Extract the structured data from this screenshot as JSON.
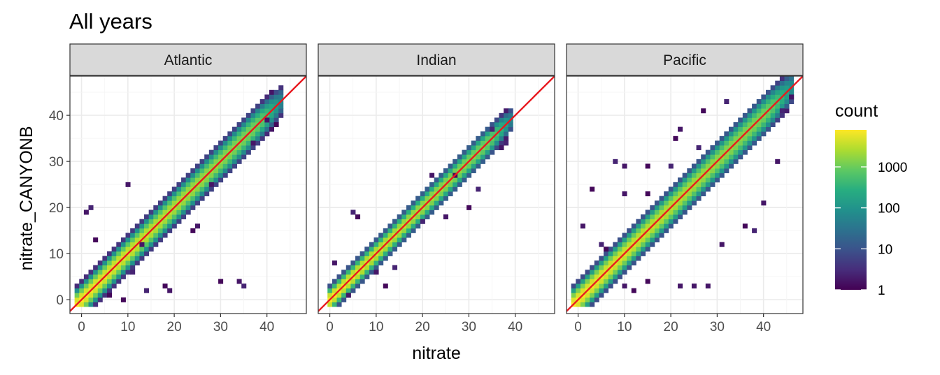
{
  "title": "All years",
  "chart_data": {
    "type": "heatmap",
    "title": "All years",
    "xlabel": "nitrate",
    "ylabel": "nitrate_CANYONB",
    "xlim": [
      -2.5,
      48.5
    ],
    "ylim": [
      -3,
      48.5
    ],
    "x_ticks": [
      0,
      10,
      20,
      30,
      40
    ],
    "y_ticks": [
      0,
      10,
      20,
      30,
      40
    ],
    "grid": true,
    "reference_line": {
      "slope": 1,
      "intercept": 0,
      "color": "#e8191f"
    },
    "colorscale": "viridis",
    "fill_scale": "log10",
    "legend": {
      "title": "count",
      "placement": "right",
      "breaks": [
        "1000",
        "100",
        "10",
        "1"
      ],
      "break_values": [
        1000,
        100,
        10,
        1
      ],
      "max": 8000
    },
    "panels": [
      {
        "name": "Atlantic",
        "x_range": [
          -0.5,
          43
        ],
        "offset_sd": 1.6,
        "outliers": [
          [
            2,
            20
          ],
          [
            1,
            19
          ],
          [
            3,
            13
          ],
          [
            10,
            25
          ],
          [
            13,
            12
          ],
          [
            18,
            3
          ],
          [
            19,
            2
          ],
          [
            30,
            4
          ],
          [
            34,
            4
          ],
          [
            35,
            3
          ],
          [
            37,
            34
          ],
          [
            40,
            39
          ],
          [
            42,
            38
          ],
          [
            28,
            25
          ],
          [
            25,
            16
          ],
          [
            24,
            15
          ],
          [
            6,
            1
          ],
          [
            9,
            0
          ],
          [
            11,
            6
          ],
          [
            14,
            2
          ]
        ]
      },
      {
        "name": "Indian",
        "x_range": [
          0,
          39
        ],
        "offset_sd": 1.3,
        "outliers": [
          [
            1,
            8
          ],
          [
            5,
            19
          ],
          [
            6,
            18
          ],
          [
            4,
            1
          ],
          [
            12,
            3
          ],
          [
            14,
            7
          ],
          [
            22,
            27
          ],
          [
            30,
            20
          ],
          [
            32,
            24
          ],
          [
            35,
            37
          ],
          [
            37,
            33
          ],
          [
            38,
            34
          ],
          [
            20,
            17
          ],
          [
            25,
            18
          ],
          [
            27,
            27
          ],
          [
            10,
            6
          ]
        ]
      },
      {
        "name": "Pacific",
        "x_range": [
          -0.5,
          46.5
        ],
        "offset_sd": 1.7,
        "outliers": [
          [
            3,
            24
          ],
          [
            8,
            30
          ],
          [
            10,
            29
          ],
          [
            10,
            23
          ],
          [
            15,
            29
          ],
          [
            15,
            23
          ],
          [
            20,
            29
          ],
          [
            21,
            35
          ],
          [
            22,
            37
          ],
          [
            27,
            41
          ],
          [
            26,
            33
          ],
          [
            32,
            43
          ],
          [
            10,
            3
          ],
          [
            12,
            2
          ],
          [
            15,
            4
          ],
          [
            22,
            3
          ],
          [
            25,
            3
          ],
          [
            28,
            3
          ],
          [
            31,
            12
          ],
          [
            36,
            16
          ],
          [
            38,
            15
          ],
          [
            40,
            21
          ],
          [
            43,
            30
          ],
          [
            44,
            41
          ],
          [
            46,
            44
          ],
          [
            5,
            12
          ],
          [
            6,
            11
          ],
          [
            1,
            16
          ]
        ]
      }
    ]
  }
}
